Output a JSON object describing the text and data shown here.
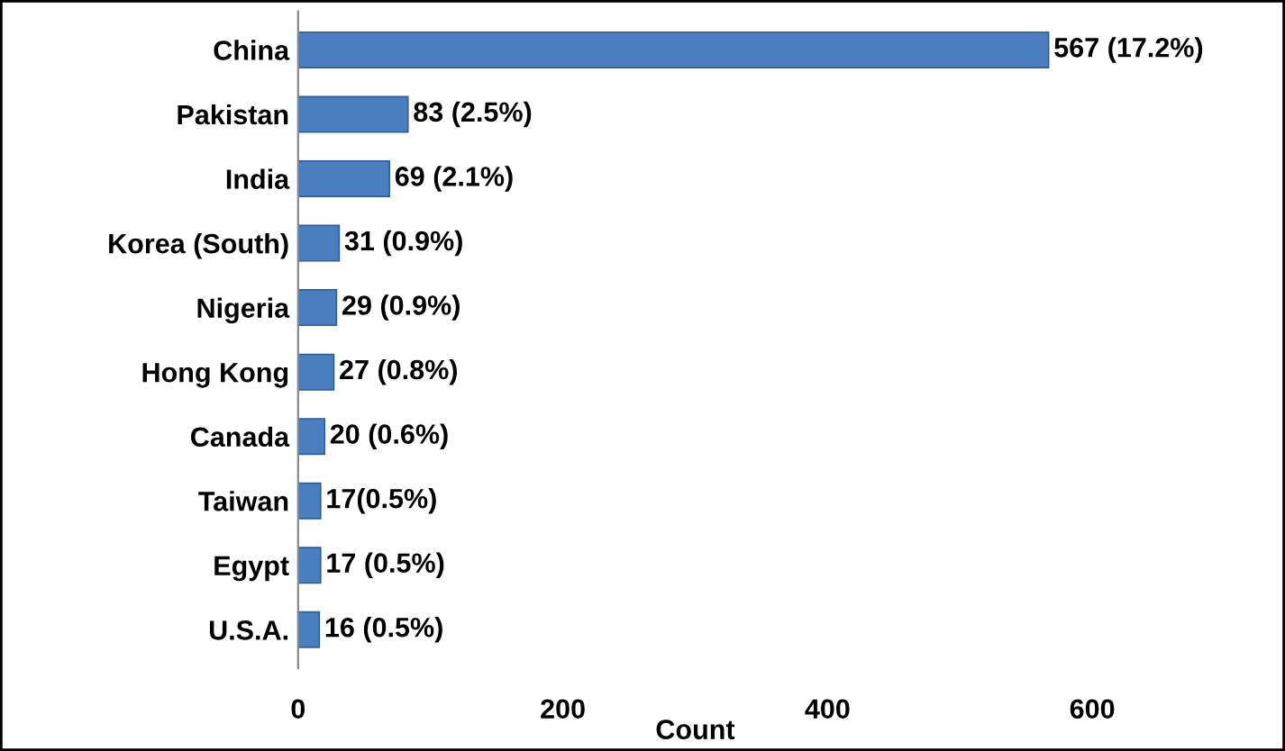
{
  "chart_data": {
    "type": "bar",
    "orientation": "horizontal",
    "xlabel": "Count",
    "categories": [
      "China",
      "Pakistan",
      "India",
      "Korea (South)",
      "Nigeria",
      "Hong Kong",
      "Canada",
      "Taiwan",
      "Egypt",
      "U.S.A."
    ],
    "values": [
      567,
      83,
      69,
      31,
      29,
      27,
      20,
      17,
      17,
      16
    ],
    "value_labels": [
      "567 (17.2%)",
      "83 (2.5%)",
      "69 (2.1%)",
      "31 (0.9%)",
      "29 (0.9%)",
      "27 (0.8%)",
      "20 (0.6%)",
      "17(0.5%)",
      "17 (0.5%)",
      "16 (0.5%)"
    ],
    "color": "#4a7ebf",
    "xlim": [
      0,
      600
    ],
    "xticks": [
      0,
      200,
      400,
      600
    ],
    "grid": false
  }
}
